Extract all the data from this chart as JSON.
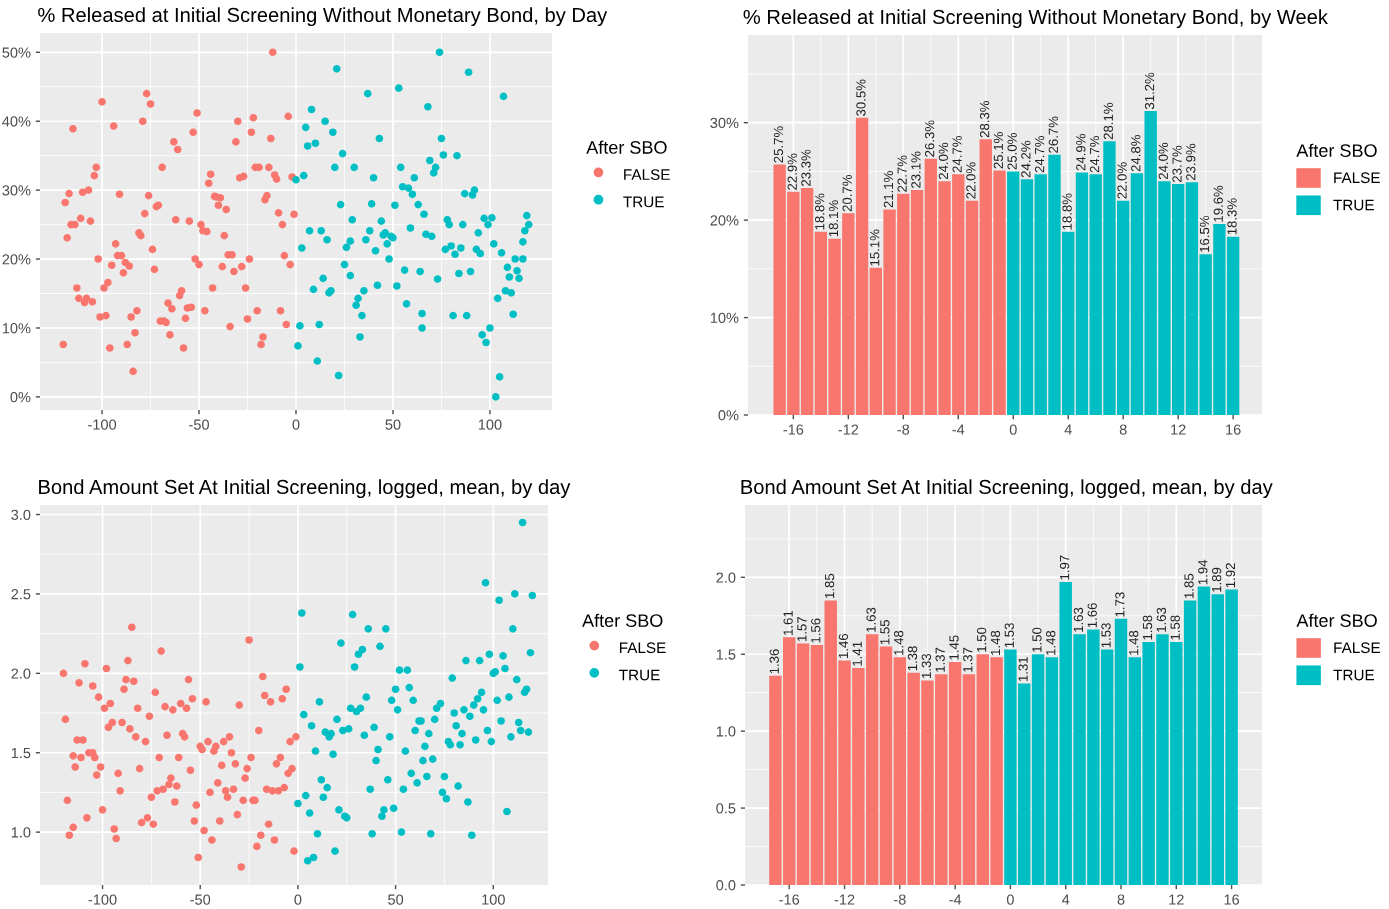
{
  "chart_data": [
    {
      "type": "scatter",
      "title": "% Released at Initial Screening Without Monetary Bond, by Day",
      "legend_title": "After SBO",
      "legend": "right",
      "grid": true,
      "marker": "circle",
      "xlim": [
        -132,
        132
      ],
      "xticks": [
        -100,
        -50,
        0,
        50,
        100
      ],
      "ylim": [
        -1.9,
        52.8
      ],
      "yticks": [
        {
          "value": 0,
          "label": "0%"
        },
        {
          "value": 10,
          "label": "10%"
        },
        {
          "value": 20,
          "label": "20%"
        },
        {
          "value": 30,
          "label": "30%"
        },
        {
          "value": 40,
          "label": "40%"
        },
        {
          "value": 50,
          "label": "50%"
        }
      ],
      "series": [
        {
          "name": "FALSE",
          "color": "#f8766d",
          "x": [
            -12,
            -100,
            -77,
            -75,
            -51,
            -115,
            -94,
            -79,
            -53,
            -30,
            -22,
            -4,
            -23,
            -31,
            -13,
            -63,
            -61,
            -69,
            -103,
            -104,
            -44,
            -45,
            -29,
            -27,
            -21,
            -19,
            -14,
            -11,
            -10,
            -2,
            -119,
            -117,
            -110,
            -107,
            -91,
            -76,
            -78,
            -72,
            -71,
            -42,
            -41,
            -39,
            -40,
            -36,
            -16,
            -15,
            -9,
            -7,
            -1,
            -116,
            -114,
            -111,
            -106,
            -118,
            -62,
            -55,
            -49,
            -48,
            -46,
            -37,
            -81,
            -80,
            -93,
            -74,
            -92,
            -90,
            -102,
            -95,
            -88,
            -86,
            -89,
            -73,
            -52,
            -50,
            -35,
            -33,
            -38,
            -32,
            -28,
            -24,
            -6,
            -3,
            -97,
            -99,
            -113,
            -112,
            -109,
            -108,
            -105,
            -59,
            -60,
            -66,
            -64,
            -56,
            -54,
            -47,
            -43,
            -26,
            -20,
            -8,
            -101,
            -98,
            -85,
            -82,
            -70,
            -68,
            -67,
            -57,
            -25,
            -5,
            -34,
            -83,
            -65,
            -17,
            -18,
            -120,
            -96,
            -87,
            -58,
            -84
          ],
          "values": [
            50.0,
            42.8,
            44.0,
            42.5,
            41.2,
            38.9,
            39.3,
            40.0,
            38.4,
            40.0,
            40.5,
            40.7,
            38.4,
            37.0,
            37.5,
            37.0,
            35.9,
            33.3,
            33.3,
            32.1,
            32.3,
            31.0,
            31.8,
            32.0,
            33.3,
            33.3,
            33.3,
            32.2,
            31.6,
            31.9,
            28.2,
            29.5,
            29.7,
            30.0,
            29.4,
            29.2,
            26.6,
            27.6,
            27.8,
            29.1,
            29.0,
            28.9,
            27.8,
            27.2,
            28.6,
            29.2,
            26.7,
            25.0,
            26.5,
            25.0,
            25.0,
            25.9,
            25.5,
            23.1,
            25.7,
            25.5,
            25.0,
            24.1,
            24.0,
            23.4,
            23.8,
            23.4,
            22.2,
            21.4,
            20.5,
            20.5,
            20.0,
            19.1,
            19.5,
            19.0,
            18.0,
            18.5,
            20.0,
            19.2,
            20.6,
            20.6,
            18.9,
            18.2,
            18.9,
            20.0,
            20.5,
            19.2,
            16.6,
            15.8,
            15.8,
            14.3,
            13.7,
            14.3,
            13.8,
            15.4,
            14.7,
            13.6,
            12.8,
            12.9,
            13.0,
            12.5,
            15.8,
            15.8,
            12.5,
            12.5,
            11.6,
            11.8,
            11.6,
            12.5,
            11.0,
            11.0,
            10.8,
            11.4,
            11.3,
            10.5,
            10.2,
            9.3,
            9.0,
            8.7,
            7.6,
            7.6,
            7.1,
            7.6,
            7.1,
            3.7
          ]
        },
        {
          "name": "TRUE",
          "color": "#00bfc4",
          "x": [
            74,
            21,
            89,
            37,
            53,
            107,
            68,
            8,
            15,
            5,
            19,
            6,
            10,
            43,
            75,
            24,
            76,
            83,
            69,
            20,
            30,
            54,
            72,
            71,
            4,
            0,
            40,
            61,
            55,
            58,
            60,
            87,
            91,
            92,
            23,
            39,
            51,
            63,
            66,
            119,
            120,
            118,
            29,
            44,
            78,
            79,
            86,
            97,
            101,
            99,
            7,
            13,
            16,
            38,
            36,
            45,
            46,
            49,
            50,
            47,
            59,
            67,
            70,
            94,
            26,
            28,
            3,
            41,
            77,
            80,
            82,
            85,
            93,
            95,
            102,
            106,
            117,
            25,
            28,
            48,
            113,
            117,
            109,
            114,
            110,
            115,
            56,
            64,
            73,
            84,
            90,
            14,
            9,
            17,
            18,
            35,
            32,
            31,
            42,
            52,
            108,
            111,
            104,
            57,
            65,
            34,
            81,
            88,
            112,
            2,
            12,
            65,
            100,
            96,
            98,
            1,
            33,
            11,
            22,
            105,
            103
          ],
          "values": [
            50.0,
            47.6,
            47.1,
            44.0,
            44.8,
            43.6,
            42.1,
            41.7,
            40.0,
            39.1,
            38.4,
            36.4,
            36.8,
            37.5,
            37.5,
            35.3,
            35.1,
            35.0,
            34.3,
            33.3,
            33.3,
            33.3,
            33.3,
            32.5,
            32.1,
            31.5,
            31.8,
            31.8,
            30.5,
            30.3,
            29.4,
            29.5,
            29.3,
            30.0,
            27.9,
            28.0,
            27.8,
            27.9,
            26.5,
            26.3,
            25.0,
            24.1,
            25.7,
            25.5,
            25.7,
            25.0,
            25.0,
            25.9,
            26.0,
            25.0,
            24.1,
            24.1,
            22.8,
            24.1,
            22.8,
            23.5,
            23.8,
            23.3,
            23.1,
            22.2,
            24.5,
            23.6,
            23.3,
            23.8,
            21.7,
            22.6,
            21.6,
            21.2,
            21.4,
            21.9,
            20.7,
            21.6,
            21.4,
            20.8,
            22.2,
            20.9,
            22.5,
            19.2,
            17.6,
            20.0,
            20.0,
            20.0,
            18.8,
            18.3,
            17.4,
            17.2,
            18.4,
            18.2,
            17.1,
            17.9,
            18.2,
            17.2,
            15.6,
            15.1,
            15.4,
            15.4,
            14.3,
            13.3,
            16.2,
            16.1,
            15.4,
            15.1,
            14.3,
            13.5,
            12.1,
            11.8,
            11.8,
            11.8,
            12.0,
            10.3,
            10.5,
            10.0,
            10.0,
            9.0,
            7.9,
            7.4,
            8.7,
            5.2,
            3.1,
            2.9,
            0.0
          ]
        }
      ]
    },
    {
      "type": "bar",
      "title": "% Released at Initial Screening Without Monetary Bond, by Week",
      "legend_title": "After SBO",
      "legend": "right",
      "grid": true,
      "xlim": [
        -19.3,
        18.1
      ],
      "xticks": [
        -16,
        -12,
        -8,
        -4,
        0,
        4,
        8,
        12,
        16
      ],
      "ylim": [
        0,
        39
      ],
      "yticks": [
        {
          "value": 0,
          "label": "0%"
        },
        {
          "value": 10,
          "label": "10%"
        },
        {
          "value": 20,
          "label": "20%"
        },
        {
          "value": 30,
          "label": "30%"
        }
      ],
      "series": [
        {
          "name": "FALSE",
          "color": "#f8766d",
          "x": [
            -17,
            -16,
            -15,
            -14,
            -13,
            -12,
            -11,
            -10,
            -9,
            -8,
            -7,
            -6,
            -5,
            -4,
            -3,
            -2,
            -1
          ],
          "values": [
            25.7,
            22.9,
            23.3,
            18.8,
            18.1,
            20.7,
            30.5,
            15.1,
            21.1,
            22.7,
            23.1,
            26.3,
            24.0,
            24.7,
            22.0,
            28.3,
            25.1
          ],
          "value_labels": [
            "25.7%",
            "22.9%",
            "23.3%",
            "18.8%",
            "18.1%",
            "20.7%",
            "30.5%",
            "15.1%",
            "21.1%",
            "22.7%",
            "23.1%",
            "26.3%",
            "24.0%",
            "24.7%",
            "22.0%",
            "28.3%",
            "25.1%"
          ]
        },
        {
          "name": "TRUE",
          "color": "#00bfc4",
          "x": [
            0,
            1,
            2,
            3,
            4,
            5,
            6,
            7,
            8,
            9,
            10,
            11,
            12,
            13,
            14,
            15,
            16
          ],
          "values": [
            25.0,
            24.2,
            24.7,
            26.7,
            18.8,
            24.9,
            24.7,
            28.1,
            22.0,
            24.8,
            31.2,
            24.0,
            23.7,
            23.9,
            16.5,
            19.6,
            18.3
          ],
          "value_labels": [
            "25.0%",
            "24.2%",
            "24.7%",
            "26.7%",
            "18.8%",
            "24.9%",
            "24.7%",
            "28.1%",
            "22.0%",
            "24.8%",
            "31.2%",
            "24.0%",
            "23.7%",
            "23.9%",
            "16.5%",
            "19.6%",
            "18.3%"
          ]
        }
      ]
    },
    {
      "type": "scatter",
      "title": "Bond Amount Set At Initial Screening, logged, mean, by day",
      "legend_title": "After SBO",
      "legend": "right",
      "grid": true,
      "marker": "circle",
      "xlim": [
        -132,
        128
      ],
      "xticks": [
        -100,
        -50,
        0,
        50,
        100
      ],
      "ylim": [
        0.667,
        3.06
      ],
      "yticks": [
        {
          "value": 1.0,
          "label": "1.0"
        },
        {
          "value": 1.5,
          "label": "1.5"
        },
        {
          "value": 2.0,
          "label": "2.0"
        },
        {
          "value": 2.5,
          "label": "2.5"
        },
        {
          "value": 3.0,
          "label": "3.0"
        }
      ],
      "series": [
        {
          "name": "FALSE",
          "color": "#f8766d",
          "x": [
            -85,
            -70,
            -25,
            -87,
            -109,
            -98,
            -120,
            -112,
            -105,
            -102,
            -88,
            -89,
            -84,
            -56,
            -73,
            -54,
            -47,
            -68,
            -64,
            -60,
            -57,
            -82,
            -99,
            -96,
            -76,
            -30,
            -18,
            -17,
            -14,
            -8,
            -6,
            -119,
            -97,
            -95,
            -90,
            -86,
            -83,
            -78,
            -67,
            -59,
            -58,
            -20,
            -4,
            -1,
            -113,
            -110,
            -46,
            -50,
            -49,
            -43,
            -42,
            -38,
            -35,
            -34,
            -115,
            -111,
            -114,
            -107,
            -105,
            -104,
            -103,
            -101,
            -92,
            -91,
            -81,
            -71,
            -61,
            -55,
            -39,
            -32,
            -24,
            -26,
            -27,
            -11,
            -9,
            -5,
            -3,
            -66,
            -65,
            -62,
            -72,
            -69,
            -41,
            -37,
            -36,
            -33,
            -45,
            -16,
            -13,
            -10,
            -7,
            -118,
            -75,
            -63,
            -52,
            -28,
            -23,
            -22,
            -100,
            -108,
            -80,
            -77,
            -74,
            -53,
            -40,
            -31,
            -15,
            -115,
            -117,
            -94,
            -93,
            -48,
            -44,
            -19,
            -12,
            -21,
            -2,
            -51,
            -29
          ],
          "values": [
            2.29,
            2.14,
            2.21,
            2.08,
            2.06,
            2.03,
            2.0,
            1.94,
            1.92,
            1.85,
            1.96,
            1.9,
            1.95,
            1.96,
            1.88,
            1.84,
            1.82,
            1.79,
            1.77,
            1.81,
            1.78,
            1.78,
            1.78,
            1.81,
            1.73,
            1.8,
            1.98,
            1.86,
            1.82,
            1.84,
            1.9,
            1.71,
            1.66,
            1.69,
            1.69,
            1.65,
            1.6,
            1.57,
            1.61,
            1.62,
            1.6,
            1.64,
            1.57,
            1.6,
            1.58,
            1.58,
            1.57,
            1.54,
            1.52,
            1.51,
            1.54,
            1.57,
            1.6,
            1.5,
            1.48,
            1.47,
            1.41,
            1.5,
            1.5,
            1.47,
            1.36,
            1.41,
            1.37,
            1.26,
            1.4,
            1.47,
            1.47,
            1.39,
            1.42,
            1.43,
            1.47,
            1.4,
            1.34,
            1.43,
            1.47,
            1.37,
            1.4,
            1.3,
            1.34,
            1.29,
            1.26,
            1.27,
            1.31,
            1.26,
            1.22,
            1.27,
            1.25,
            1.27,
            1.26,
            1.26,
            1.28,
            1.2,
            1.22,
            1.19,
            1.17,
            1.2,
            1.2,
            1.2,
            1.14,
            1.09,
            1.06,
            1.09,
            1.05,
            1.07,
            1.07,
            1.11,
            1.05,
            1.03,
            0.98,
            1.02,
            0.96,
            1.01,
            0.95,
            0.98,
            0.95,
            0.91,
            0.88,
            0.84,
            0.78
          ]
        },
        {
          "name": "TRUE",
          "color": "#00bfc4",
          "x": [
            115,
            96,
            111,
            120,
            103,
            2,
            28,
            36,
            45,
            110,
            22,
            31,
            33,
            42,
            119,
            98,
            105,
            29,
            1,
            52,
            56,
            86,
            93,
            100,
            101,
            106,
            79,
            112,
            50,
            57,
            116,
            117,
            35,
            48,
            59,
            94,
            92,
            90,
            11,
            27,
            30,
            32,
            51,
            71,
            73,
            85,
            95,
            102,
            108,
            3,
            20,
            7,
            14,
            16,
            17,
            23,
            26,
            39,
            34,
            47,
            60,
            62,
            63,
            67,
            70,
            80,
            81,
            84,
            88,
            97,
            99,
            104,
            109,
            113,
            114,
            118,
            91,
            77,
            78,
            83,
            9,
            18,
            41,
            40,
            55,
            65,
            64,
            69,
            12,
            15,
            13,
            46,
            58,
            61,
            66,
            75,
            37,
            54,
            74,
            76,
            82,
            87,
            4,
            0,
            6,
            21,
            24,
            25,
            44,
            43,
            49,
            107,
            10,
            38,
            53,
            68,
            89,
            19,
            5,
            8
          ],
          "values": [
            2.95,
            2.57,
            2.5,
            2.49,
            2.46,
            2.38,
            2.37,
            2.28,
            2.28,
            2.28,
            2.19,
            2.12,
            2.15,
            2.17,
            2.13,
            2.12,
            2.11,
            2.04,
            2.04,
            2.02,
            2.02,
            2.08,
            2.08,
            2.0,
            2.01,
            2.03,
            1.97,
            1.96,
            1.9,
            1.91,
            1.88,
            1.9,
            1.85,
            1.83,
            1.83,
            1.88,
            1.84,
            1.8,
            1.82,
            1.78,
            1.76,
            1.78,
            1.77,
            1.78,
            1.81,
            1.77,
            1.77,
            1.83,
            1.85,
            1.74,
            1.71,
            1.67,
            1.63,
            1.6,
            1.62,
            1.64,
            1.65,
            1.66,
            1.61,
            1.6,
            1.64,
            1.7,
            1.7,
            1.62,
            1.71,
            1.75,
            1.67,
            1.62,
            1.73,
            1.64,
            1.57,
            1.7,
            1.6,
            1.69,
            1.64,
            1.63,
            1.58,
            1.57,
            1.55,
            1.55,
            1.51,
            1.49,
            1.52,
            1.45,
            1.51,
            1.54,
            1.45,
            1.46,
            1.33,
            1.28,
            1.22,
            1.33,
            1.37,
            1.31,
            1.35,
            1.35,
            1.27,
            1.27,
            1.25,
            1.21,
            1.29,
            1.19,
            1.23,
            1.18,
            1.12,
            1.14,
            1.1,
            1.09,
            1.14,
            1.1,
            1.15,
            1.13,
            0.99,
            0.99,
            1.0,
            0.99,
            0.98,
            0.88,
            0.82,
            0.84
          ]
        }
      ]
    },
    {
      "type": "bar",
      "title": "Bond Amount Set At Initial Screening, logged, mean, by day",
      "legend_title": "After SBO",
      "legend": "right",
      "grid": true,
      "xlim": [
        -19.2,
        18.2
      ],
      "xticks": [
        -16,
        -12,
        -8,
        -4,
        0,
        4,
        8,
        12,
        16
      ],
      "ylim": [
        0,
        2.47
      ],
      "yticks": [
        {
          "value": 0.0,
          "label": "0.0"
        },
        {
          "value": 0.5,
          "label": "0.5"
        },
        {
          "value": 1.0,
          "label": "1.0"
        },
        {
          "value": 1.5,
          "label": "1.5"
        },
        {
          "value": 2.0,
          "label": "2.0"
        }
      ],
      "series": [
        {
          "name": "FALSE",
          "color": "#f8766d",
          "x": [
            -17,
            -16,
            -15,
            -14,
            -13,
            -12,
            -11,
            -10,
            -9,
            -8,
            -7,
            -6,
            -5,
            -4,
            -3,
            -2,
            -1
          ],
          "values": [
            1.36,
            1.61,
            1.57,
            1.56,
            1.85,
            1.46,
            1.41,
            1.63,
            1.55,
            1.48,
            1.38,
            1.33,
            1.37,
            1.45,
            1.37,
            1.5,
            1.48
          ],
          "value_labels": [
            "1.36",
            "1.61",
            "1.57",
            "1.56",
            "1.85",
            "1.46",
            "1.41",
            "1.63",
            "1.55",
            "1.48",
            "1.38",
            "1.33",
            "1.37",
            "1.45",
            "1.37",
            "1.50",
            "1.48"
          ]
        },
        {
          "name": "TRUE",
          "color": "#00bfc4",
          "x": [
            0,
            1,
            2,
            3,
            4,
            5,
            6,
            7,
            8,
            9,
            10,
            11,
            12,
            13,
            14,
            15,
            16
          ],
          "values": [
            1.53,
            1.31,
            1.5,
            1.48,
            1.97,
            1.63,
            1.66,
            1.53,
            1.73,
            1.48,
            1.58,
            1.63,
            1.58,
            1.85,
            1.94,
            1.89,
            1.92
          ],
          "value_labels": [
            "1.53",
            "1.31",
            "1.50",
            "1.48",
            "1.97",
            "1.63",
            "1.66",
            "1.53",
            "1.73",
            "1.48",
            "1.58",
            "1.63",
            "1.58",
            "1.85",
            "1.94",
            "1.89",
            "1.92"
          ]
        }
      ]
    }
  ]
}
